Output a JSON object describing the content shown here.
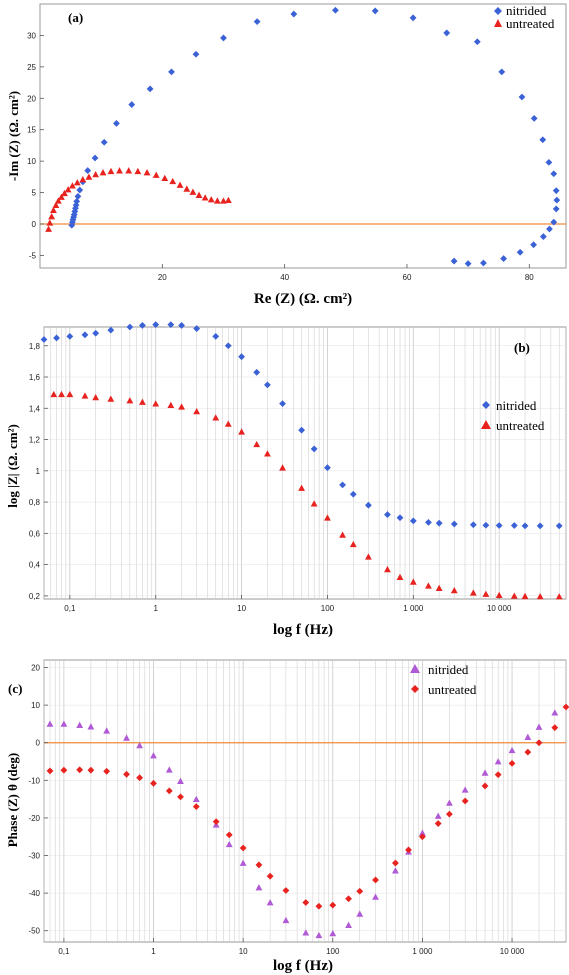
{
  "colors": {
    "nitrided_blue": "#3a62d6",
    "untreated_red": "#e8231f",
    "nitrided_violet": "#b05ad6",
    "zero_line": "#f08a3c",
    "grid": "#c8c8c8",
    "frame": "#999999"
  },
  "chart_data": [
    {
      "type": "scatter",
      "panel": "(a)",
      "xlabel": "Re (Z) (Ω. cm²)",
      "ylabel": "-Im (Z) (Ω. cm²)",
      "xlim": [
        0,
        86
      ],
      "ylim": [
        -7,
        35
      ],
      "xticks": [
        20,
        40,
        60,
        80
      ],
      "yticks": [
        -5,
        0,
        5,
        10,
        15,
        20,
        25,
        30
      ],
      "xscale": "linear",
      "grid": false,
      "zero_line": true,
      "legend": "top-right",
      "series": [
        {
          "name": "nitrided",
          "marker": "diamond",
          "color": "#3a62d6",
          "x": [
            5.2,
            5.3,
            5.4,
            5.5,
            5.6,
            5.7,
            5.8,
            5.9,
            6.0,
            6.2,
            6.5,
            7.0,
            7.8,
            9.0,
            10.5,
            12.5,
            15.0,
            18.0,
            21.5,
            25.5,
            30,
            35.5,
            41.5,
            48.3,
            54.8,
            61,
            66.5,
            71.5,
            75.5,
            78.8,
            80.8,
            82.2,
            83.2,
            84.0,
            84.4,
            84.5,
            84.4,
            84.0,
            83.3,
            82.3,
            80.7,
            78.5,
            75.8,
            72.5,
            70,
            67.7
          ],
          "y": [
            -0.2,
            0.3,
            0.7,
            1.1,
            1.5,
            2.0,
            2.5,
            3.0,
            3.6,
            4.4,
            5.4,
            6.7,
            8.5,
            10.5,
            13.0,
            16.0,
            19.0,
            21.5,
            24.2,
            27.0,
            29.6,
            32.2,
            33.4,
            34.0,
            33.9,
            32.8,
            30.4,
            29.0,
            24.2,
            20.2,
            16.8,
            13.4,
            9.8,
            8.0,
            5.3,
            3.8,
            2.4,
            0.3,
            -0.8,
            -2.0,
            -3.3,
            -4.5,
            -5.5,
            -6.2,
            -6.3,
            -5.9
          ]
        },
        {
          "name": "untreated",
          "marker": "triangle",
          "color": "#e8231f",
          "x": [
            1.4,
            1.6,
            1.9,
            2.2,
            2.6,
            3.0,
            3.5,
            4.0,
            4.6,
            5.3,
            6.1,
            7.0,
            8.0,
            9.1,
            10.3,
            11.6,
            13.0,
            14.5,
            16.0,
            17.5,
            19.0,
            20.4,
            21.7,
            22.9,
            24.0,
            25.0,
            26.0,
            27.0,
            28.0,
            29.0,
            30.0,
            30.8
          ],
          "y": [
            -0.8,
            0.2,
            1.2,
            2.2,
            3.0,
            3.7,
            4.3,
            4.9,
            5.5,
            6.1,
            6.6,
            7.1,
            7.5,
            7.9,
            8.2,
            8.4,
            8.5,
            8.5,
            8.4,
            8.2,
            7.8,
            7.3,
            6.8,
            6.2,
            5.6,
            5.1,
            4.6,
            4.2,
            3.9,
            3.7,
            3.7,
            3.8
          ]
        }
      ]
    },
    {
      "type": "scatter",
      "panel": "(b)",
      "xlabel": "log f (Hz)",
      "ylabel": "log |Z| (Ω. cm²)",
      "xscale": "log",
      "xlim": [
        0.05,
        60000
      ],
      "ylim": [
        0.18,
        1.92
      ],
      "xtick_values": [
        0.1,
        1,
        10,
        100,
        1000,
        10000
      ],
      "xtick_labels": [
        "0,1",
        "1",
        "10",
        "100",
        "1 000",
        "10 000"
      ],
      "ytick_values": [
        0.2,
        0.4,
        0.6,
        0.8,
        1.0,
        1.2,
        1.4,
        1.6,
        1.8
      ],
      "ytick_labels": [
        "0,2",
        "0,4",
        "0,6",
        "0,8",
        "1",
        "1,2",
        "1,4",
        "1,6",
        "1,8"
      ],
      "grid": true,
      "legend": "right",
      "series": [
        {
          "name": "nitrided",
          "marker": "diamond",
          "color": "#3a62d6",
          "x": [
            0.05,
            0.07,
            0.1,
            0.15,
            0.2,
            0.3,
            0.5,
            0.7,
            1,
            1.5,
            2,
            3,
            5,
            7,
            10,
            15,
            20,
            30,
            50,
            70,
            100,
            150,
            200,
            300,
            500,
            700,
            1000,
            1500,
            2000,
            3000,
            5000,
            7000,
            10000,
            15000,
            20000,
            30000,
            50000
          ],
          "y": [
            1.84,
            1.85,
            1.86,
            1.87,
            1.88,
            1.9,
            1.92,
            1.93,
            1.935,
            1.935,
            1.93,
            1.91,
            1.86,
            1.8,
            1.73,
            1.63,
            1.55,
            1.43,
            1.26,
            1.14,
            1.02,
            0.91,
            0.85,
            0.78,
            0.72,
            0.7,
            0.68,
            0.67,
            0.665,
            0.66,
            0.655,
            0.652,
            0.65,
            0.65,
            0.648,
            0.648,
            0.648
          ]
        },
        {
          "name": "untreated",
          "marker": "triangle",
          "color": "#e8231f",
          "x": [
            0.065,
            0.08,
            0.1,
            0.15,
            0.2,
            0.3,
            0.5,
            0.7,
            1,
            1.5,
            2,
            3,
            5,
            7,
            10,
            15,
            20,
            30,
            50,
            70,
            100,
            150,
            200,
            300,
            500,
            700,
            1000,
            1500,
            2000,
            3000,
            5000,
            7000,
            10000,
            15000,
            20000,
            30000,
            50000
          ],
          "y": [
            1.49,
            1.49,
            1.49,
            1.48,
            1.47,
            1.46,
            1.45,
            1.44,
            1.43,
            1.42,
            1.41,
            1.38,
            1.34,
            1.3,
            1.25,
            1.17,
            1.11,
            1.02,
            0.89,
            0.79,
            0.7,
            0.59,
            0.53,
            0.45,
            0.37,
            0.32,
            0.29,
            0.265,
            0.25,
            0.235,
            0.22,
            0.212,
            0.205,
            0.2,
            0.198,
            0.197,
            0.196
          ]
        }
      ]
    },
    {
      "type": "scatter",
      "panel": "(c)",
      "xlabel": "log f (Hz)",
      "ylabel": "Phase (Z) θ (deg)",
      "xscale": "log",
      "xlim": [
        0.06,
        40000
      ],
      "ylim": [
        -53,
        22
      ],
      "xtick_values": [
        0.1,
        1,
        10,
        100,
        1000,
        10000
      ],
      "xtick_labels": [
        "0,1",
        "1",
        "10",
        "100",
        "1 000",
        "10 000"
      ],
      "ytick_values": [
        -50,
        -40,
        -30,
        -20,
        -10,
        0,
        10,
        20
      ],
      "ytick_labels": [
        "-50",
        "-40",
        "-30",
        "-20",
        "-10",
        "0",
        "10",
        "20"
      ],
      "grid": true,
      "zero_line": true,
      "legend": "top-right",
      "series": [
        {
          "name": "nitrided",
          "marker": "triangle",
          "color": "#b05ad6",
          "x": [
            0.07,
            0.1,
            0.15,
            0.2,
            0.3,
            0.5,
            0.7,
            1,
            1.5,
            2,
            3,
            5,
            7,
            10,
            15,
            20,
            30,
            50,
            70,
            100,
            150,
            200,
            300,
            500,
            700,
            1000,
            1500,
            2000,
            3000,
            5000,
            7000,
            10000,
            15000,
            20000,
            30000
          ],
          "y": [
            5,
            5,
            4.7,
            4.3,
            3.2,
            1.3,
            -0.7,
            -3.4,
            -7.2,
            -10.2,
            -15,
            -21.8,
            -27,
            -32,
            -38.5,
            -42.5,
            -47.2,
            -50.5,
            -51.2,
            -50.7,
            -48.5,
            -45.5,
            -41,
            -34,
            -29,
            -24,
            -19.5,
            -16,
            -12.5,
            -8,
            -5,
            -2,
            1.5,
            4.2,
            8
          ]
        },
        {
          "name": "untreated",
          "marker": "diamond",
          "color": "#e8231f",
          "x": [
            0.07,
            0.1,
            0.15,
            0.2,
            0.3,
            0.5,
            0.7,
            1,
            1.5,
            2,
            3,
            5,
            7,
            10,
            15,
            20,
            30,
            50,
            70,
            100,
            150,
            200,
            300,
            500,
            700,
            1000,
            1500,
            2000,
            3000,
            5000,
            7000,
            10000,
            15000,
            20000,
            30000,
            40000
          ],
          "y": [
            -7.5,
            -7.3,
            -7.2,
            -7.3,
            -7.6,
            -8.4,
            -9.3,
            -10.8,
            -12.8,
            -14.4,
            -17,
            -21,
            -24.5,
            -28,
            -32.5,
            -35.5,
            -39.3,
            -42.5,
            -43.5,
            -43.2,
            -41.5,
            -39.5,
            -36.5,
            -32,
            -28.5,
            -25,
            -21.5,
            -19,
            -15.5,
            -11.5,
            -8.5,
            -5.5,
            -2.5,
            0,
            4,
            9.5
          ]
        }
      ]
    }
  ]
}
